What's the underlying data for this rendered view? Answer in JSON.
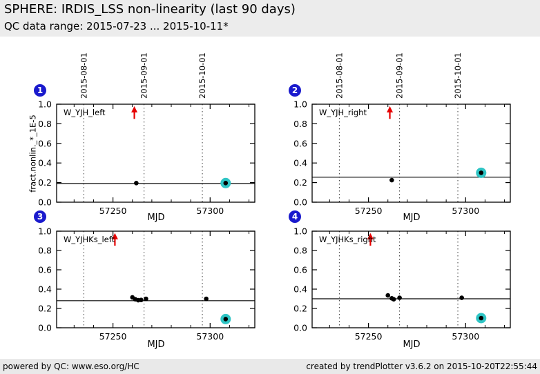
{
  "header": {
    "title": "SPHERE: IRDIS_LSS non-linearity (last 90 days)",
    "subtitle": "QC data range: 2015-07-23 ... 2015-10-11*"
  },
  "footer": {
    "left": "powered by QC: www.eso.org/HC",
    "right": "created by trendPlotter v3.6.2 on 2015-10-20T22:55:44"
  },
  "colors": {
    "header_bg": "#ececec",
    "footer_bg": "#e9e9e9",
    "badge_blue": "#1a1acd",
    "arrow_red": "#e60000",
    "highlight_teal": "#2fc5c5",
    "point_black": "#000000"
  },
  "chart_data": {
    "type": "scatter",
    "title": "SPHERE: IRDIS_LSS non-linearity (last 90 days)",
    "xlabel": "MJD",
    "ylabel": "fract.nonlin._*_1E-5",
    "xlim": [
      57221,
      57323
    ],
    "ylim": [
      0.0,
      1.0
    ],
    "grid": false,
    "xticks": [
      {
        "v": 57250,
        "label": "57250"
      },
      {
        "v": 57300,
        "label": "57300"
      }
    ],
    "minor_xticks": [
      57230,
      57240,
      57260,
      57270,
      57280,
      57290,
      57310,
      57320
    ],
    "yticks": [
      {
        "v": 0.0,
        "label": "0.0"
      },
      {
        "v": 0.2,
        "label": "0.2"
      },
      {
        "v": 0.4,
        "label": "0.4"
      },
      {
        "v": 0.6,
        "label": "0.6"
      },
      {
        "v": 0.8,
        "label": "0.8"
      },
      {
        "v": 1.0,
        "label": "1.0"
      }
    ],
    "date_lines": [
      {
        "mjd": 57235,
        "label": "2015-08-01"
      },
      {
        "mjd": 57266,
        "label": "2015-09-01"
      },
      {
        "mjd": 57296,
        "label": "2015-10-01"
      }
    ],
    "arrow_y": [
      0.85,
      0.98
    ],
    "panels": [
      {
        "number": "1",
        "label": "W_YJH_left",
        "mean_line_y": 0.19,
        "arrow_x": 57261,
        "points": [
          [
            57262,
            0.195
          ]
        ],
        "highlighted_point": [
          57308,
          0.195
        ]
      },
      {
        "number": "2",
        "label": "W_YJH_right",
        "mean_line_y": 0.255,
        "arrow_x": 57261,
        "points": [
          [
            57262,
            0.225
          ]
        ],
        "highlighted_point": [
          57308,
          0.3
        ]
      },
      {
        "number": "3",
        "label": "W_YJHKs_left",
        "mean_line_y": 0.28,
        "arrow_x": 57251,
        "points": [
          [
            57260,
            0.315
          ],
          [
            57261.5,
            0.295
          ],
          [
            57263,
            0.285
          ],
          [
            57264.5,
            0.288
          ],
          [
            57267,
            0.3
          ],
          [
            57298,
            0.3
          ]
        ],
        "highlighted_point": [
          57308,
          0.09
        ]
      },
      {
        "number": "4",
        "label": "W_YJHKs_right",
        "mean_line_y": 0.3,
        "arrow_x": 57251,
        "points": [
          [
            57260,
            0.335
          ],
          [
            57262,
            0.305
          ],
          [
            57263,
            0.295
          ],
          [
            57266,
            0.31
          ],
          [
            57298,
            0.31
          ]
        ],
        "highlighted_point": [
          57308,
          0.1
        ]
      }
    ]
  }
}
